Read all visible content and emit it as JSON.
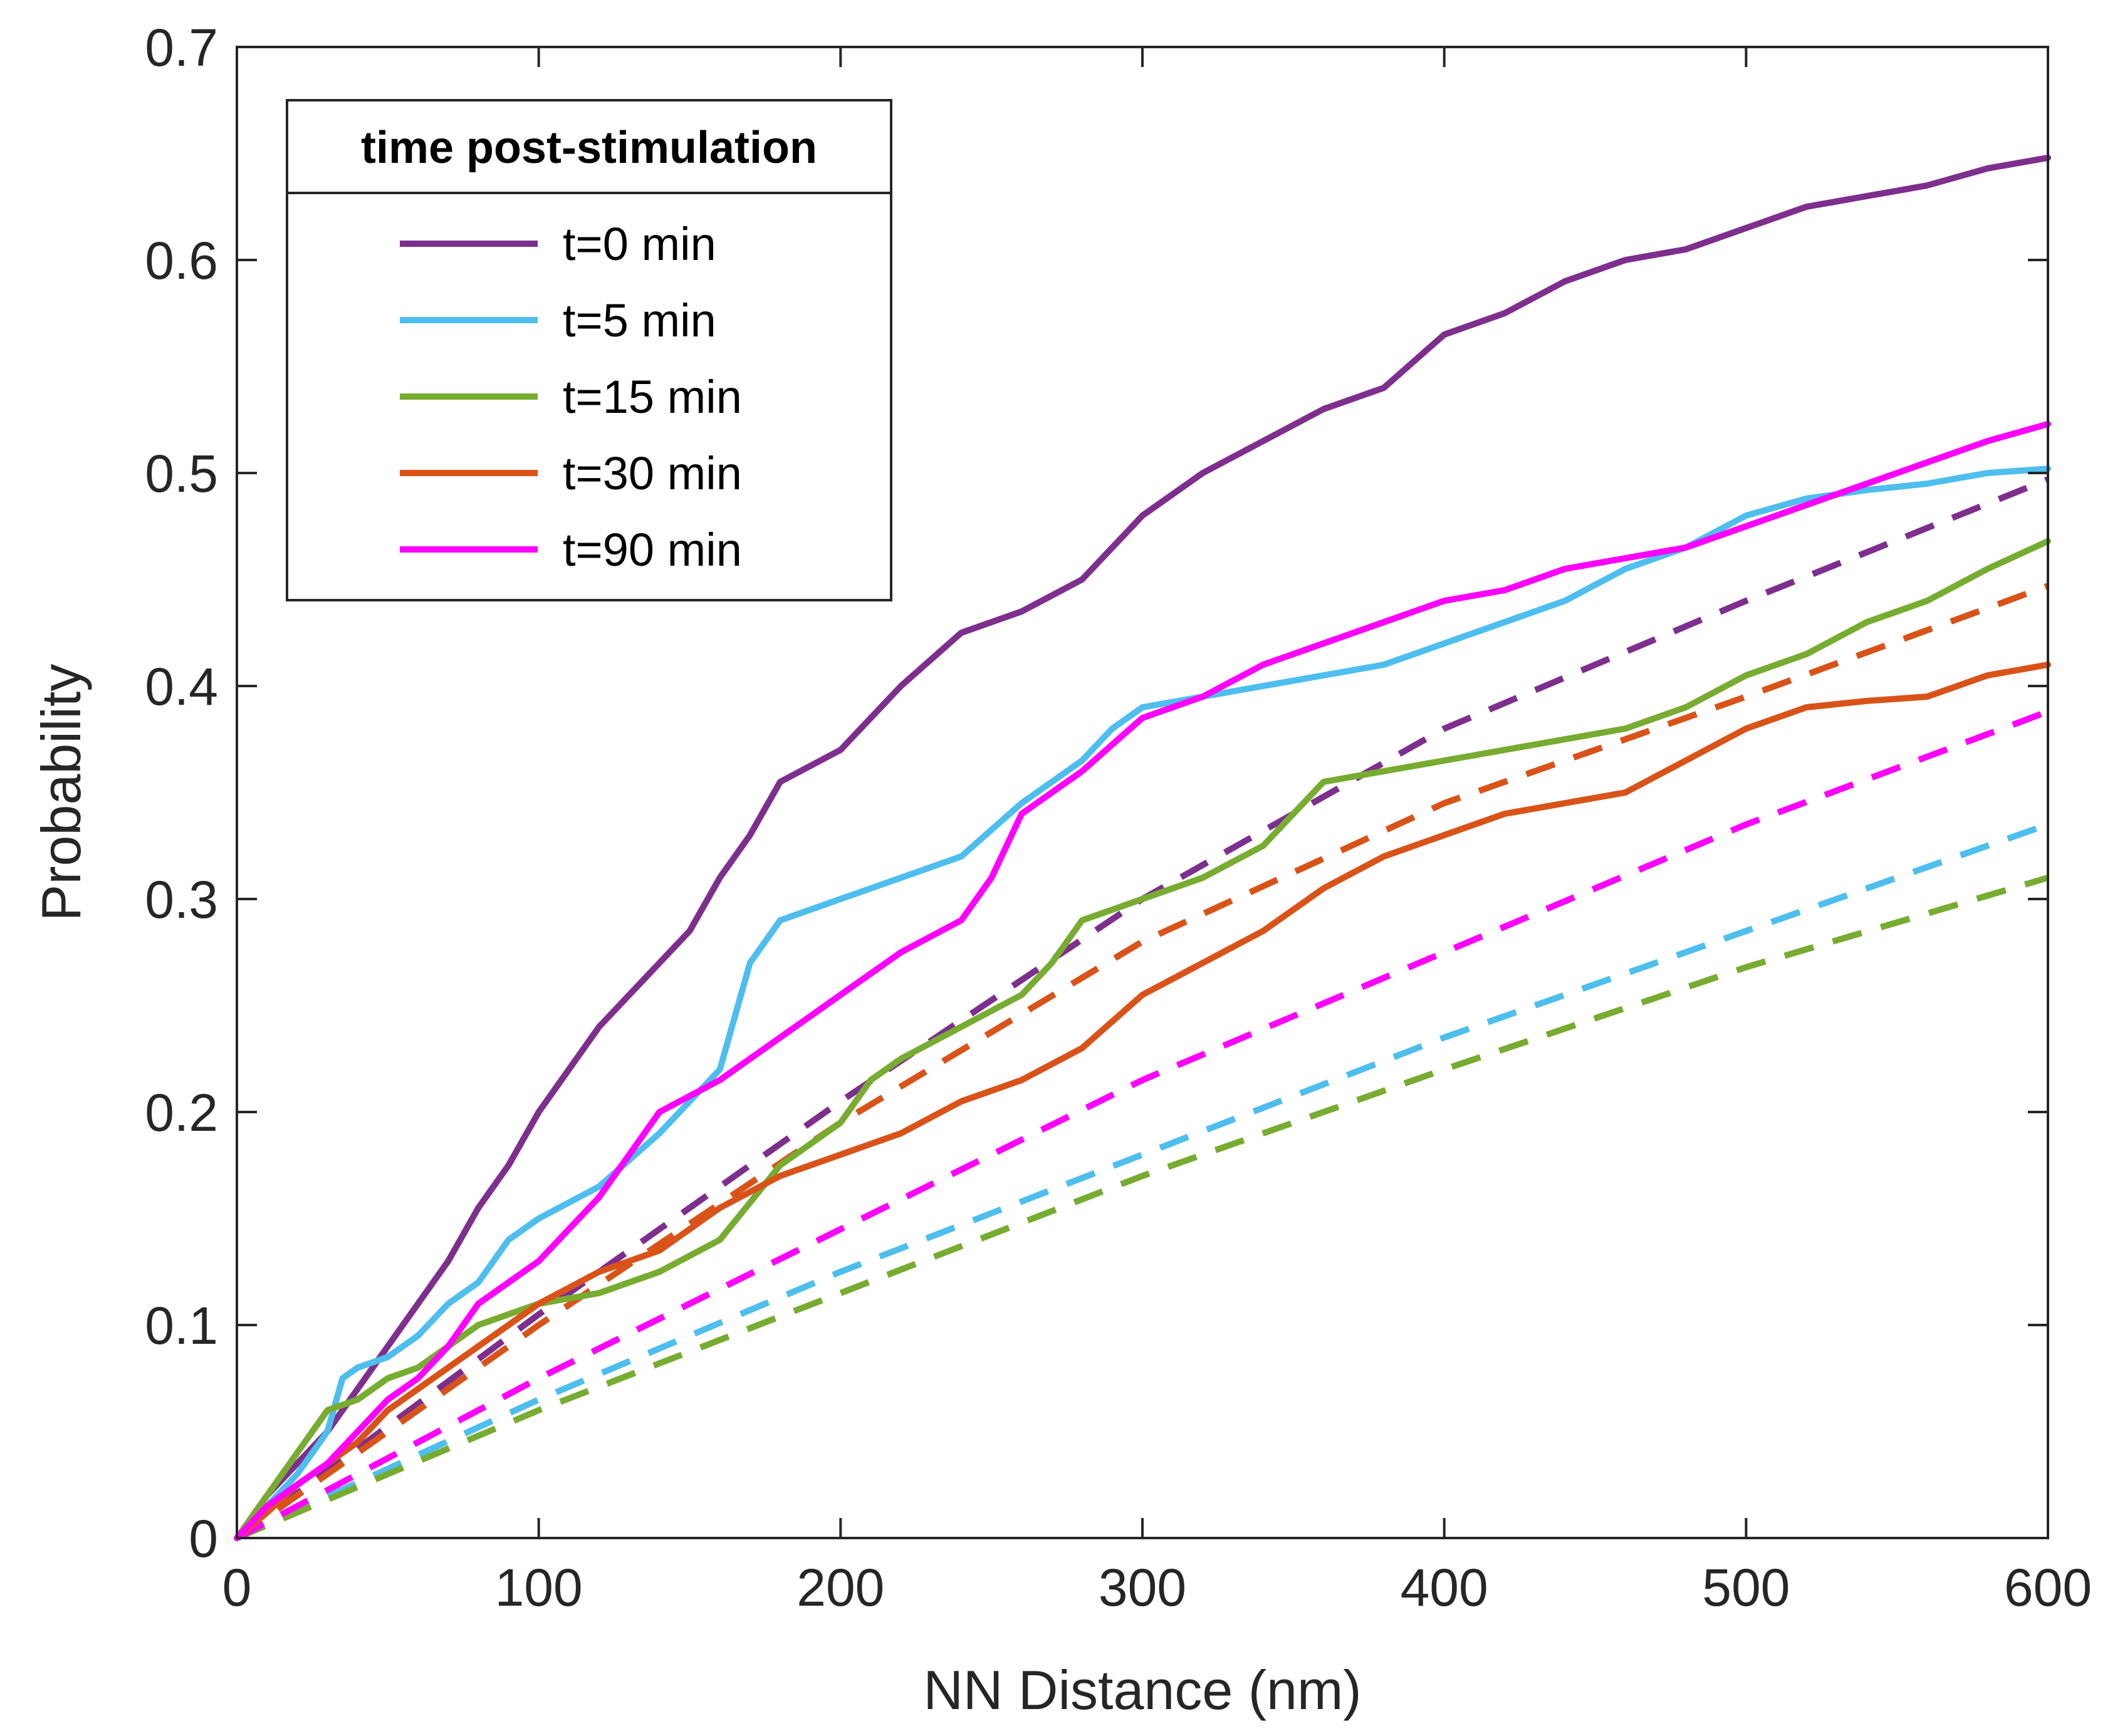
{
  "chart_data": {
    "type": "line",
    "xlabel": "NN Distance (nm)",
    "ylabel": "Probability",
    "xlim": [
      0,
      600
    ],
    "ylim": [
      0,
      0.7
    ],
    "xticks": [
      "0",
      "100",
      "200",
      "300",
      "400",
      "500",
      "600"
    ],
    "yticks": [
      "0",
      "0.1",
      "0.2",
      "0.3",
      "0.4",
      "0.5",
      "0.6",
      "0.7"
    ],
    "grid": false,
    "legend": {
      "title": "time post-stimulation",
      "position": "top-left"
    },
    "series": [
      {
        "name": "t=0 min",
        "color": "#7E2F8E",
        "x": [
          0,
          10,
          20,
          30,
          40,
          50,
          60,
          70,
          80,
          90,
          100,
          120,
          140,
          150,
          160,
          170,
          180,
          200,
          220,
          240,
          260,
          280,
          300,
          320,
          340,
          360,
          380,
          400,
          420,
          440,
          460,
          480,
          500,
          520,
          540,
          560,
          580,
          600
        ],
        "y": [
          0,
          0.02,
          0.035,
          0.05,
          0.07,
          0.09,
          0.11,
          0.13,
          0.155,
          0.175,
          0.2,
          0.24,
          0.27,
          0.285,
          0.31,
          0.33,
          0.355,
          0.37,
          0.4,
          0.425,
          0.435,
          0.45,
          0.48,
          0.5,
          0.515,
          0.53,
          0.54,
          0.565,
          0.575,
          0.59,
          0.6,
          0.605,
          0.615,
          0.625,
          0.63,
          0.635,
          0.643,
          0.648
        ]
      },
      {
        "name": "t=5 min",
        "color": "#4DBEEE",
        "x": [
          0,
          10,
          20,
          30,
          35,
          40,
          50,
          60,
          70,
          80,
          90,
          100,
          120,
          140,
          160,
          165,
          170,
          180,
          200,
          220,
          240,
          260,
          280,
          290,
          300,
          320,
          340,
          360,
          380,
          400,
          420,
          440,
          460,
          480,
          500,
          520,
          540,
          560,
          580,
          600
        ],
        "y": [
          0,
          0.015,
          0.03,
          0.05,
          0.075,
          0.08,
          0.085,
          0.095,
          0.11,
          0.12,
          0.14,
          0.15,
          0.165,
          0.19,
          0.22,
          0.245,
          0.27,
          0.29,
          0.3,
          0.31,
          0.32,
          0.345,
          0.365,
          0.38,
          0.39,
          0.395,
          0.4,
          0.405,
          0.41,
          0.42,
          0.43,
          0.44,
          0.455,
          0.465,
          0.48,
          0.488,
          0.492,
          0.495,
          0.5,
          0.502
        ]
      },
      {
        "name": "t=15 min",
        "color": "#77AC30",
        "x": [
          0,
          10,
          20,
          30,
          40,
          50,
          60,
          70,
          80,
          100,
          120,
          140,
          160,
          180,
          200,
          210,
          220,
          240,
          260,
          270,
          280,
          300,
          320,
          340,
          360,
          380,
          400,
          420,
          440,
          460,
          480,
          500,
          520,
          540,
          560,
          580,
          600
        ],
        "y": [
          0,
          0.02,
          0.04,
          0.06,
          0.065,
          0.075,
          0.08,
          0.09,
          0.1,
          0.11,
          0.115,
          0.125,
          0.14,
          0.175,
          0.195,
          0.215,
          0.225,
          0.24,
          0.255,
          0.27,
          0.29,
          0.3,
          0.31,
          0.325,
          0.355,
          0.36,
          0.365,
          0.37,
          0.375,
          0.38,
          0.39,
          0.405,
          0.415,
          0.43,
          0.44,
          0.455,
          0.468
        ]
      },
      {
        "name": "t=30 min",
        "color": "#D95319",
        "x": [
          0,
          10,
          20,
          30,
          40,
          50,
          60,
          70,
          80,
          100,
          120,
          140,
          160,
          180,
          200,
          220,
          240,
          260,
          280,
          300,
          320,
          340,
          360,
          380,
          400,
          420,
          440,
          460,
          480,
          500,
          520,
          540,
          560,
          580,
          600
        ],
        "y": [
          0,
          0.012,
          0.025,
          0.035,
          0.045,
          0.06,
          0.07,
          0.08,
          0.09,
          0.11,
          0.125,
          0.135,
          0.155,
          0.17,
          0.18,
          0.19,
          0.205,
          0.215,
          0.23,
          0.255,
          0.27,
          0.285,
          0.305,
          0.32,
          0.33,
          0.34,
          0.345,
          0.35,
          0.365,
          0.38,
          0.39,
          0.393,
          0.395,
          0.405,
          0.41
        ]
      },
      {
        "name": "t=90 min",
        "color": "#FF00FF",
        "x": [
          0,
          10,
          20,
          30,
          40,
          50,
          60,
          70,
          80,
          90,
          100,
          120,
          140,
          160,
          180,
          200,
          220,
          240,
          250,
          260,
          280,
          300,
          320,
          340,
          360,
          380,
          400,
          420,
          440,
          460,
          480,
          500,
          520,
          540,
          560,
          580,
          600
        ],
        "y": [
          0,
          0.015,
          0.025,
          0.035,
          0.05,
          0.065,
          0.075,
          0.09,
          0.11,
          0.12,
          0.13,
          0.16,
          0.2,
          0.215,
          0.235,
          0.255,
          0.275,
          0.29,
          0.31,
          0.34,
          0.36,
          0.385,
          0.395,
          0.41,
          0.42,
          0.43,
          0.44,
          0.445,
          0.455,
          0.46,
          0.465,
          0.475,
          0.485,
          0.495,
          0.505,
          0.515,
          0.523
        ]
      }
    ],
    "reference_series": [
      {
        "name": "t=0 min",
        "color": "#7E2F8E",
        "x": [
          0,
          100,
          200,
          300,
          400,
          500,
          600
        ],
        "y": [
          0,
          0.105,
          0.205,
          0.3,
          0.38,
          0.44,
          0.497
        ]
      },
      {
        "name": "t=5 min",
        "color": "#4DBEEE",
        "x": [
          0,
          100,
          200,
          300,
          400,
          500,
          600
        ],
        "y": [
          0,
          0.065,
          0.125,
          0.18,
          0.235,
          0.285,
          0.335
        ]
      },
      {
        "name": "t=15 min",
        "color": "#77AC30",
        "x": [
          0,
          100,
          200,
          300,
          400,
          500,
          600
        ],
        "y": [
          0,
          0.06,
          0.115,
          0.17,
          0.22,
          0.268,
          0.31
        ]
      },
      {
        "name": "t=30 min",
        "color": "#D95319",
        "x": [
          0,
          100,
          200,
          300,
          400,
          500,
          600
        ],
        "y": [
          0,
          0.1,
          0.195,
          0.28,
          0.345,
          0.395,
          0.447
        ]
      },
      {
        "name": "t=90 min",
        "color": "#FF00FF",
        "x": [
          0,
          100,
          200,
          300,
          400,
          500,
          600
        ],
        "y": [
          0,
          0.075,
          0.145,
          0.215,
          0.275,
          0.335,
          0.388
        ]
      }
    ]
  }
}
